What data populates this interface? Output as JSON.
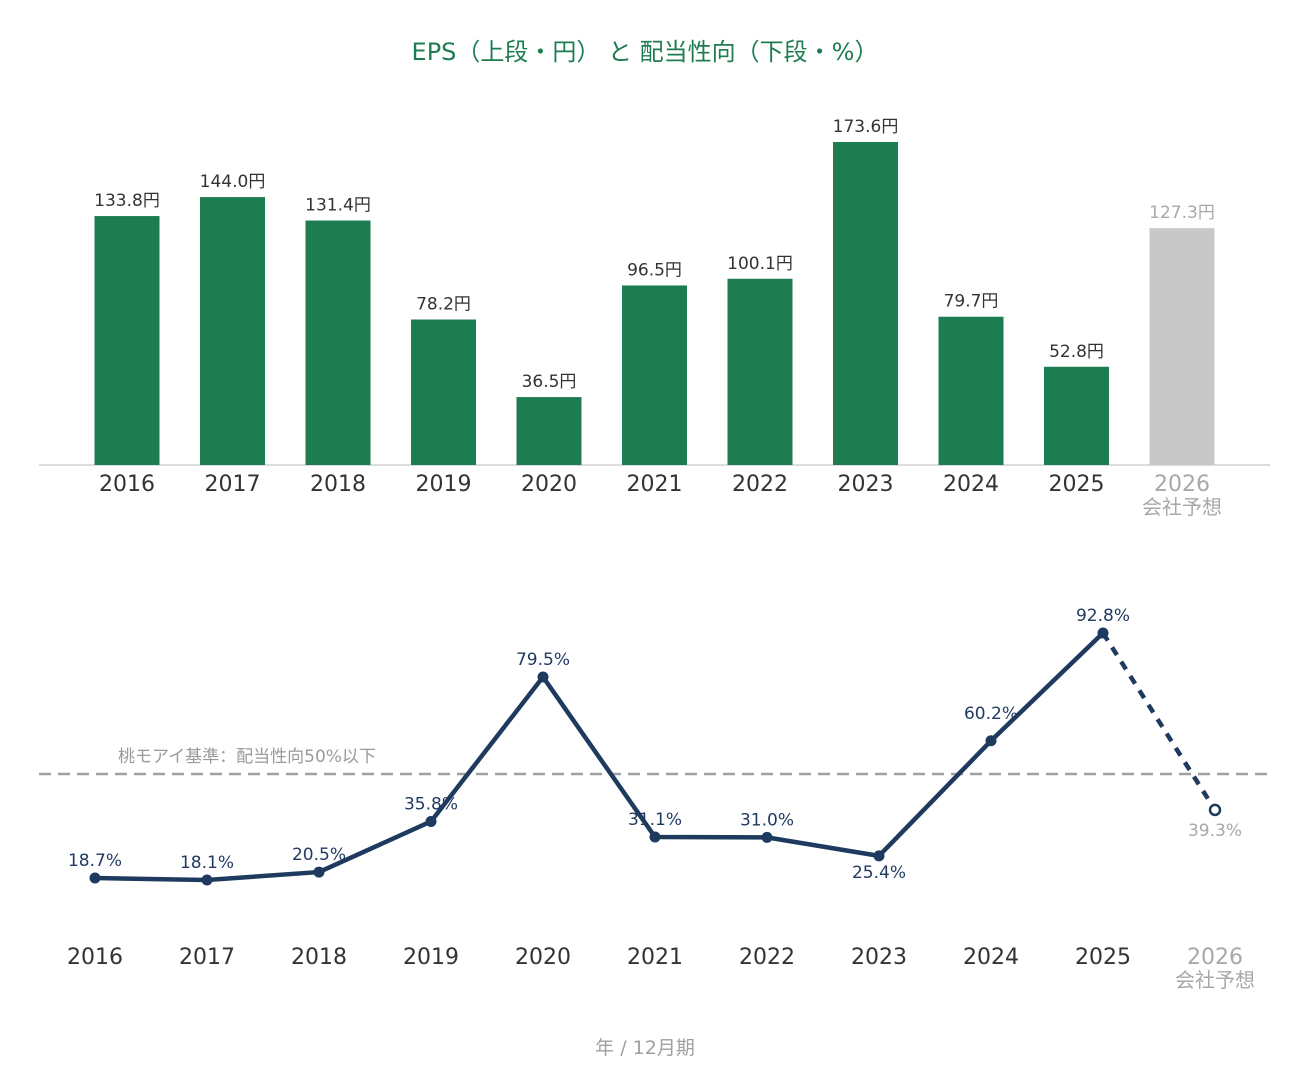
{
  "title": "EPS（上段・円） と 配当性向（下段・%）",
  "footer": "年 / 12月期",
  "colors": {
    "title": "#1e7d50",
    "bar": "#1e7d50",
    "forecast_bar": "#c8c8c8",
    "line": "#1f3a5f",
    "forecast_text": "#a8a8a8",
    "reference_line": "#a0a0a0"
  },
  "chart_data": [
    {
      "type": "bar",
      "unit": "円",
      "categories": [
        "2016",
        "2017",
        "2018",
        "2019",
        "2020",
        "2021",
        "2022",
        "2023",
        "2024",
        "2025",
        "2026"
      ],
      "category_sublabels": [
        "",
        "",
        "",
        "",
        "",
        "",
        "",
        "",
        "",
        "",
        "会社予想"
      ],
      "values": [
        133.8,
        144.0,
        131.4,
        78.2,
        36.5,
        96.5,
        100.1,
        173.6,
        79.7,
        52.8,
        127.3
      ],
      "value_labels": [
        "133.8円",
        "144.0円",
        "131.4円",
        "78.2円",
        "36.5円",
        "96.5円",
        "100.1円",
        "173.6円",
        "79.7円",
        "52.8円",
        "127.3円"
      ],
      "forecast": [
        false,
        false,
        false,
        false,
        false,
        false,
        false,
        false,
        false,
        false,
        true
      ],
      "ylim": [
        0,
        180
      ]
    },
    {
      "type": "line",
      "unit": "%",
      "categories": [
        "2016",
        "2017",
        "2018",
        "2019",
        "2020",
        "2021",
        "2022",
        "2023",
        "2024",
        "2025",
        "2026"
      ],
      "category_sublabels": [
        "",
        "",
        "",
        "",
        "",
        "",
        "",
        "",
        "",
        "",
        "会社予想"
      ],
      "values": [
        18.7,
        18.1,
        20.5,
        35.8,
        79.5,
        31.1,
        31.0,
        25.4,
        60.2,
        92.8,
        39.3
      ],
      "value_labels": [
        "18.7%",
        "18.1%",
        "20.5%",
        "35.8%",
        "79.5%",
        "31.1%",
        "31.0%",
        "25.4%",
        "60.2%",
        "92.8%",
        "39.3%"
      ],
      "forecast": [
        false,
        false,
        false,
        false,
        false,
        false,
        false,
        false,
        false,
        false,
        true
      ],
      "reference_line": {
        "value": 50,
        "label": "桃モアイ基準：配当性向50%以下"
      },
      "ylim": [
        0,
        100
      ]
    }
  ]
}
